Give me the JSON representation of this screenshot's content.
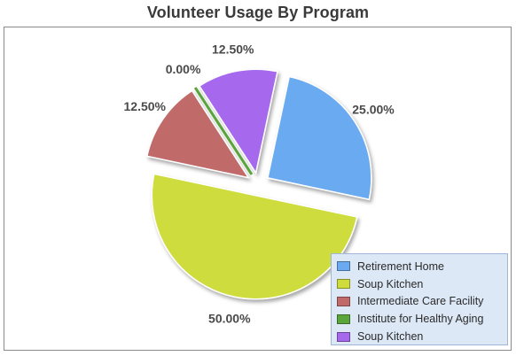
{
  "chart_data": {
    "type": "pie",
    "title": "Volunteer Usage By Program",
    "categories": [
      "Retirement Home",
      "Soup Kitchen",
      "Intermediate Care Facility",
      "Institute for Healthy Aging",
      "Soup Kitchen"
    ],
    "values": [
      25.0,
      50.0,
      12.5,
      0.0,
      12.5
    ],
    "labels": [
      "25.00%",
      "50.00%",
      "12.50%",
      "0.00%",
      "12.50%"
    ],
    "colors": [
      "#6aaaf0",
      "#cfdc3c",
      "#c06a6a",
      "#5aa53c",
      "#a668ec"
    ],
    "exploded": true,
    "legend_position": "bottom-right"
  }
}
